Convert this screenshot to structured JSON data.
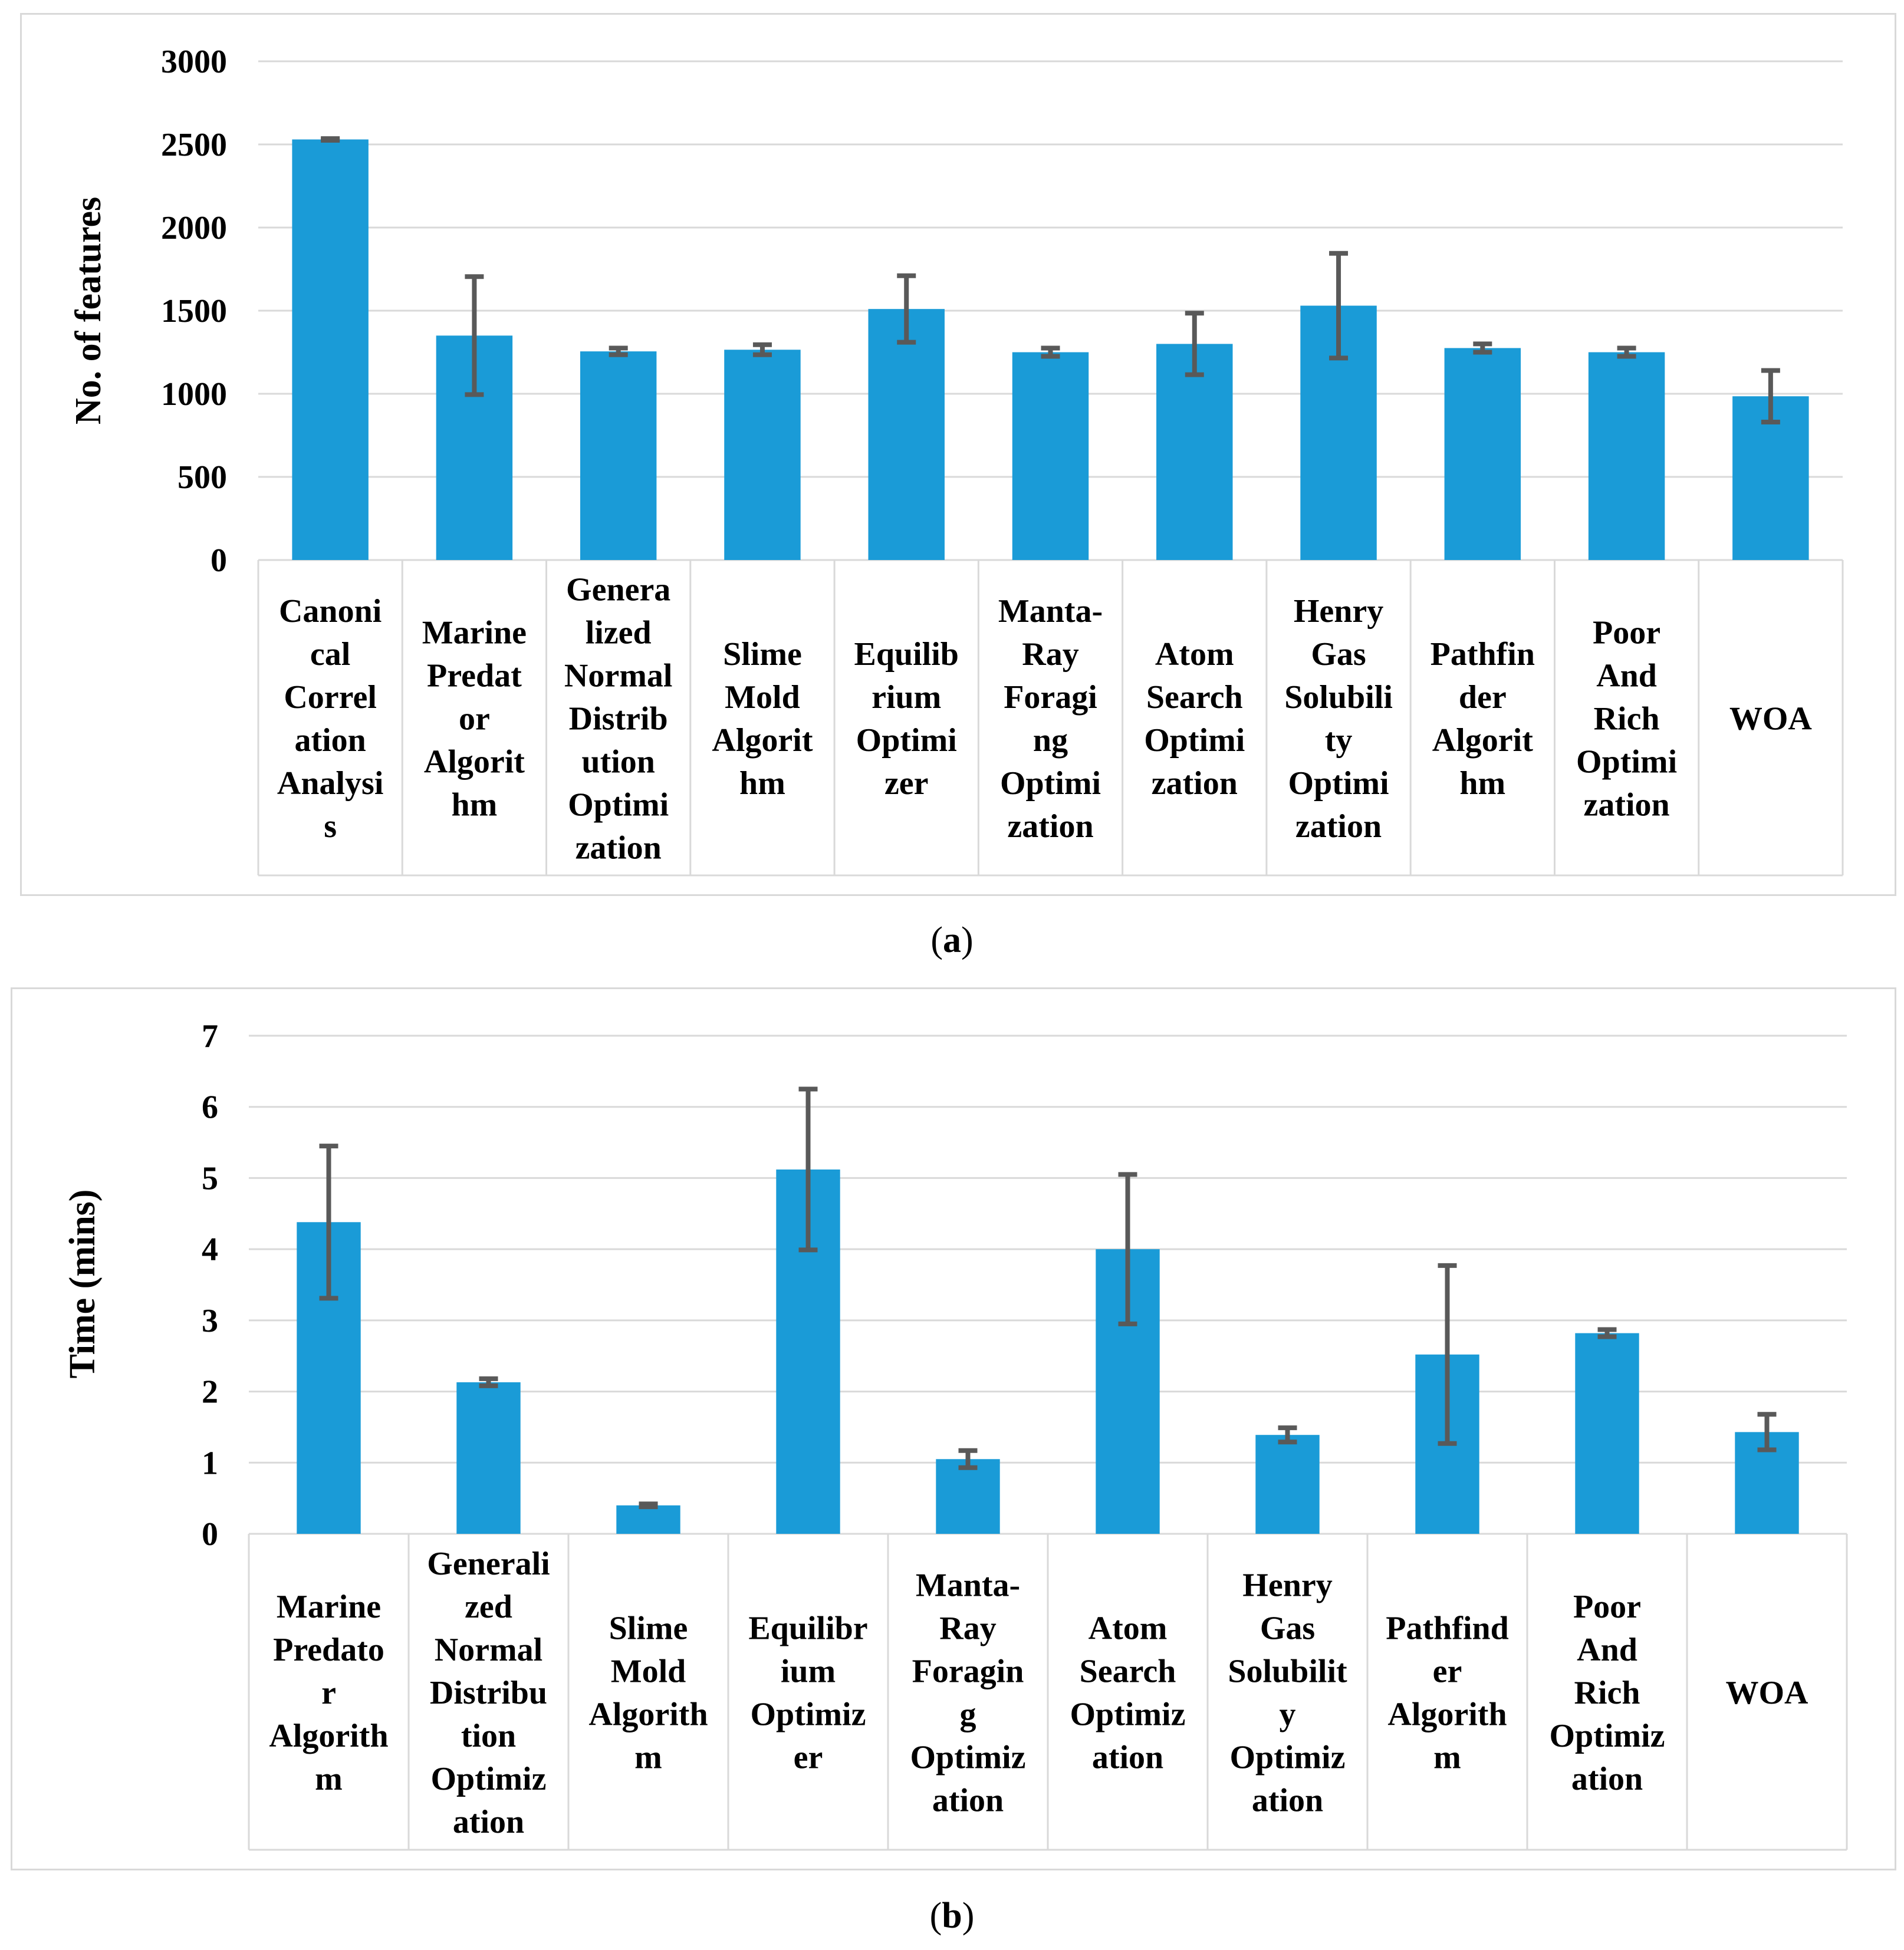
{
  "chart_data": [
    {
      "type": "bar",
      "id": "a",
      "ylabel": "No. of features",
      "ylim": [
        0,
        3000
      ],
      "yticks": [
        "0",
        "500",
        "1000",
        "1500",
        "2000",
        "2500",
        "3000"
      ],
      "grid": true,
      "categories": [
        [
          "Canoni",
          "cal",
          "Correl",
          "ation",
          "Analysi",
          "s"
        ],
        [
          "Marine",
          "Predat",
          "or",
          "Algorit",
          "hm"
        ],
        [
          "Genera",
          "lized",
          "Normal",
          "Distrib",
          "ution",
          "Optimi",
          "zation"
        ],
        [
          "Slime",
          "Mold",
          "Algorit",
          "hm"
        ],
        [
          "Equilib",
          "rium",
          "Optimi",
          "zer"
        ],
        [
          "Manta-",
          "Ray",
          "Foragi",
          "ng",
          "Optimi",
          "zation"
        ],
        [
          "Atom",
          "Search",
          "Optimi",
          "zation"
        ],
        [
          "Henry",
          "Gas",
          "Solubili",
          "ty",
          "Optimi",
          "zation"
        ],
        [
          "Pathfin",
          "der",
          "Algorit",
          "hm"
        ],
        [
          "Poor",
          "And",
          "Rich",
          "Optimi",
          "zation"
        ],
        [
          "WOA"
        ]
      ],
      "values": [
        2530,
        1350,
        1255,
        1265,
        1510,
        1250,
        1300,
        1530,
        1275,
        1250,
        985
      ],
      "errors": [
        5,
        355,
        20,
        30,
        200,
        25,
        185,
        315,
        25,
        25,
        155
      ]
    },
    {
      "type": "bar",
      "id": "b",
      "ylabel": "Time (mins)",
      "ylim": [
        0,
        7
      ],
      "yticks": [
        "0",
        "1",
        "2",
        "3",
        "4",
        "5",
        "6",
        "7"
      ],
      "grid": true,
      "categories": [
        [
          "Marine",
          "Predato",
          "r",
          "Algorith",
          "m"
        ],
        [
          "Generali",
          "zed",
          "Normal",
          "Distribu",
          "tion",
          "Optimiz",
          "ation"
        ],
        [
          "Slime",
          "Mold",
          "Algorith",
          "m"
        ],
        [
          "Equilibr",
          "ium",
          "Optimiz",
          "er"
        ],
        [
          "Manta-",
          "Ray",
          "Foragin",
          "g",
          "Optimiz",
          "ation"
        ],
        [
          "Atom",
          "Search",
          "Optimiz",
          "ation"
        ],
        [
          "Henry",
          "Gas",
          "Solubilit",
          "y",
          "Optimiz",
          "ation"
        ],
        [
          "Pathfind",
          "er",
          "Algorith",
          "m"
        ],
        [
          "Poor",
          "And",
          "Rich",
          "Optimiz",
          "ation"
        ],
        [
          "WOA"
        ]
      ],
      "values": [
        4.38,
        2.13,
        0.4,
        5.12,
        1.05,
        4.0,
        1.39,
        2.52,
        2.82,
        1.43
      ],
      "errors": [
        1.07,
        0.05,
        0.02,
        1.13,
        0.12,
        1.05,
        0.1,
        1.25,
        0.05,
        0.25
      ]
    }
  ],
  "captions": {
    "a": "a",
    "b": "b"
  }
}
